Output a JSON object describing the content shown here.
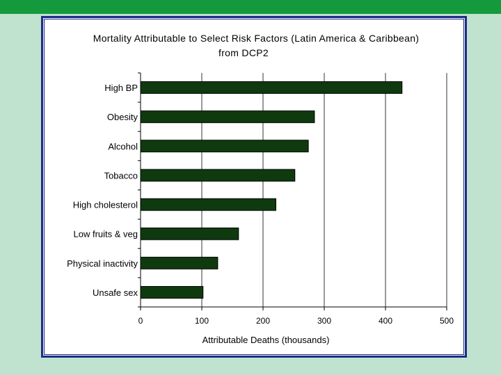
{
  "chart_data": {
    "type": "bar",
    "orientation": "horizontal",
    "title_line1": "Mortality Attributable to Select Risk Factors (Latin America & Caribbean)",
    "title_line2": "from DCP2",
    "xlabel": "Attributable Deaths (thousands)",
    "ylabel": "",
    "xlim": [
      0,
      500
    ],
    "xticks": [
      "0",
      "100",
      "200",
      "300",
      "400",
      "500"
    ],
    "grid": "vertical",
    "categories": [
      "High BP",
      "Obesity",
      "Alcohol",
      "Tobacco",
      "High cholesterol",
      "Low fruits & veg",
      "Physical inactivity",
      "Unsafe sex"
    ],
    "values": [
      427,
      284,
      274,
      252,
      221,
      160,
      126,
      102
    ],
    "bar_color": "#0f3a0f"
  }
}
